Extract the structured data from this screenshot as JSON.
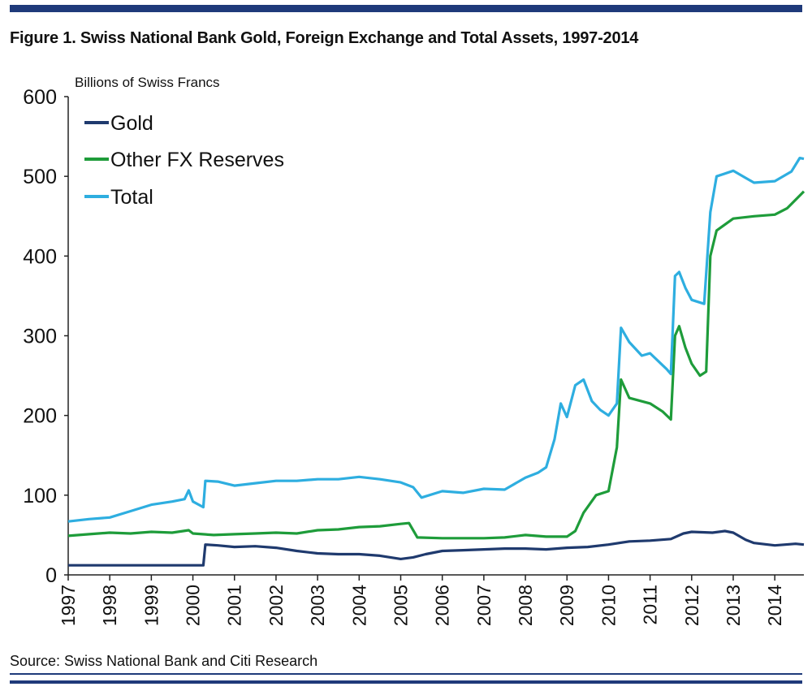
{
  "header": {
    "title": "Figure 1. Swiss National Bank Gold, Foreign Exchange and Total Assets, 1997-2014"
  },
  "footer": {
    "source": "Source: Swiss National Bank and Citi Research"
  },
  "colors": {
    "rule": "#1f3a7a",
    "gold": "#1f3a6e",
    "fx": "#1e9c3a",
    "total": "#2eaee0"
  },
  "chart_data": {
    "type": "line",
    "title": "Figure 1. Swiss National Bank Gold, Foreign Exchange and Total Assets, 1997-2014",
    "ylabel": "Billions of Swiss Francs",
    "xlabel": "",
    "ylim": [
      0,
      600
    ],
    "xlim": [
      1997,
      2014.7
    ],
    "yticks": [
      0,
      100,
      200,
      300,
      400,
      500,
      600
    ],
    "xticks": [
      "1997",
      "1998",
      "1999",
      "2000",
      "2001",
      "2002",
      "2003",
      "2004",
      "2005",
      "2006",
      "2007",
      "2008",
      "2009",
      "2010",
      "2011",
      "2012",
      "2013",
      "2014"
    ],
    "grid": false,
    "legend": "top-left",
    "series": [
      {
        "name": "Gold",
        "color": "#1f3a6e",
        "points": [
          [
            1997,
            12
          ],
          [
            1998,
            12
          ],
          [
            1999,
            12
          ],
          [
            2000,
            12
          ],
          [
            2000.25,
            12
          ],
          [
            2000.3,
            38
          ],
          [
            2000.6,
            37
          ],
          [
            2001,
            35
          ],
          [
            2001.5,
            36
          ],
          [
            2002,
            34
          ],
          [
            2002.5,
            30
          ],
          [
            2003,
            27
          ],
          [
            2003.5,
            26
          ],
          [
            2004,
            26
          ],
          [
            2004.5,
            24
          ],
          [
            2005,
            20
          ],
          [
            2005.3,
            22
          ],
          [
            2005.6,
            26
          ],
          [
            2006,
            30
          ],
          [
            2006.5,
            31
          ],
          [
            2007,
            32
          ],
          [
            2007.5,
            33
          ],
          [
            2008,
            33
          ],
          [
            2008.5,
            32
          ],
          [
            2009,
            34
          ],
          [
            2009.5,
            35
          ],
          [
            2010,
            38
          ],
          [
            2010.5,
            42
          ],
          [
            2011,
            43
          ],
          [
            2011.5,
            45
          ],
          [
            2011.8,
            52
          ],
          [
            2012,
            54
          ],
          [
            2012.5,
            53
          ],
          [
            2012.8,
            55
          ],
          [
            2013,
            53
          ],
          [
            2013.3,
            44
          ],
          [
            2013.5,
            40
          ],
          [
            2014,
            37
          ],
          [
            2014.5,
            39
          ],
          [
            2014.7,
            38
          ]
        ]
      },
      {
        "name": "Other FX Reserves",
        "color": "#1e9c3a",
        "points": [
          [
            1997,
            49
          ],
          [
            1997.5,
            51
          ],
          [
            1998,
            53
          ],
          [
            1998.5,
            52
          ],
          [
            1999,
            54
          ],
          [
            1999.5,
            53
          ],
          [
            1999.9,
            56
          ],
          [
            2000,
            52
          ],
          [
            2000.5,
            50
          ],
          [
            2001,
            51
          ],
          [
            2001.5,
            52
          ],
          [
            2002,
            53
          ],
          [
            2002.5,
            52
          ],
          [
            2003,
            56
          ],
          [
            2003.5,
            57
          ],
          [
            2004,
            60
          ],
          [
            2004.5,
            61
          ],
          [
            2005,
            64
          ],
          [
            2005.2,
            65
          ],
          [
            2005.4,
            47
          ],
          [
            2006,
            46
          ],
          [
            2006.5,
            46
          ],
          [
            2007,
            46
          ],
          [
            2007.5,
            47
          ],
          [
            2008,
            50
          ],
          [
            2008.5,
            48
          ],
          [
            2009,
            48
          ],
          [
            2009.2,
            55
          ],
          [
            2009.4,
            78
          ],
          [
            2009.7,
            100
          ],
          [
            2010,
            105
          ],
          [
            2010.2,
            160
          ],
          [
            2010.3,
            245
          ],
          [
            2010.5,
            222
          ],
          [
            2011,
            215
          ],
          [
            2011.3,
            205
          ],
          [
            2011.5,
            195
          ],
          [
            2011.6,
            300
          ],
          [
            2011.7,
            312
          ],
          [
            2011.85,
            285
          ],
          [
            2012,
            265
          ],
          [
            2012.2,
            250
          ],
          [
            2012.35,
            255
          ],
          [
            2012.45,
            400
          ],
          [
            2012.6,
            432
          ],
          [
            2013,
            447
          ],
          [
            2013.5,
            450
          ],
          [
            2014,
            452
          ],
          [
            2014.3,
            460
          ],
          [
            2014.7,
            481
          ]
        ]
      },
      {
        "name": "Total",
        "color": "#2eaee0",
        "points": [
          [
            1997,
            67
          ],
          [
            1997.5,
            70
          ],
          [
            1998,
            72
          ],
          [
            1998.5,
            80
          ],
          [
            1999,
            88
          ],
          [
            1999.5,
            92
          ],
          [
            1999.8,
            95
          ],
          [
            1999.9,
            106
          ],
          [
            2000,
            92
          ],
          [
            2000.25,
            85
          ],
          [
            2000.3,
            118
          ],
          [
            2000.6,
            117
          ],
          [
            2001,
            112
          ],
          [
            2001.5,
            115
          ],
          [
            2002,
            118
          ],
          [
            2002.5,
            118
          ],
          [
            2003,
            120
          ],
          [
            2003.5,
            120
          ],
          [
            2004,
            123
          ],
          [
            2004.5,
            120
          ],
          [
            2005,
            116
          ],
          [
            2005.3,
            110
          ],
          [
            2005.5,
            97
          ],
          [
            2006,
            105
          ],
          [
            2006.5,
            103
          ],
          [
            2007,
            108
          ],
          [
            2007.5,
            107
          ],
          [
            2008,
            122
          ],
          [
            2008.3,
            128
          ],
          [
            2008.5,
            135
          ],
          [
            2008.7,
            170
          ],
          [
            2008.85,
            215
          ],
          [
            2009,
            198
          ],
          [
            2009.2,
            238
          ],
          [
            2009.4,
            245
          ],
          [
            2009.6,
            218
          ],
          [
            2009.8,
            207
          ],
          [
            2010,
            200
          ],
          [
            2010.2,
            215
          ],
          [
            2010.3,
            310
          ],
          [
            2010.5,
            292
          ],
          [
            2010.8,
            275
          ],
          [
            2011,
            278
          ],
          [
            2011.4,
            258
          ],
          [
            2011.5,
            252
          ],
          [
            2011.6,
            375
          ],
          [
            2011.7,
            380
          ],
          [
            2011.85,
            360
          ],
          [
            2012,
            345
          ],
          [
            2012.3,
            340
          ],
          [
            2012.45,
            455
          ],
          [
            2012.6,
            500
          ],
          [
            2013,
            507
          ],
          [
            2013.3,
            498
          ],
          [
            2013.5,
            492
          ],
          [
            2014,
            494
          ],
          [
            2014.4,
            506
          ],
          [
            2014.6,
            523
          ],
          [
            2014.7,
            522
          ]
        ]
      }
    ]
  }
}
